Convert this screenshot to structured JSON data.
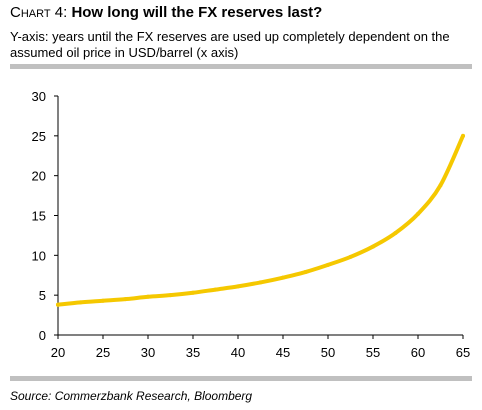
{
  "header": {
    "prefix": "Chart 4: ",
    "title": "How long will the FX reserves last?",
    "subtitle": "Y-axis: years until the FX reserves are used up completely dependent on the assumed oil price in USD/barrel (x axis)"
  },
  "footer": {
    "source": "Source: Commerzbank Research, Bloomberg"
  },
  "colors": {
    "line": "#f5c800",
    "rule": "#c0c0c0"
  },
  "chart_data": {
    "type": "line",
    "title": "",
    "xlabel": "",
    "ylabel": "",
    "xlim": [
      20,
      65
    ],
    "ylim": [
      0,
      30
    ],
    "xticks": [
      20,
      25,
      30,
      35,
      40,
      45,
      50,
      55,
      60,
      65
    ],
    "yticks": [
      0,
      5,
      10,
      15,
      20,
      25,
      30
    ],
    "grid": false,
    "legend": "none",
    "series": [
      {
        "x": [
          20,
          22.5,
          25,
          27.5,
          30,
          32.5,
          35,
          37.5,
          40,
          42.5,
          45,
          47.5,
          50,
          52.5,
          55,
          57.5,
          60,
          62.5,
          65
        ],
        "y": [
          3.8,
          4.1,
          4.3,
          4.5,
          4.8,
          5.0,
          5.3,
          5.7,
          6.1,
          6.6,
          7.2,
          7.9,
          8.8,
          9.8,
          11.1,
          12.8,
          15.2,
          18.8,
          25.0
        ]
      }
    ]
  }
}
